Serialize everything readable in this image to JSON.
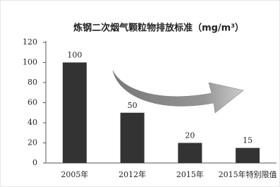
{
  "chart_data": {
    "type": "bar",
    "title": "炼钢二次烟气颗粒物排放标准（mg/m³）",
    "categories": [
      "2005年",
      "2012年",
      "2015年",
      "2015年特别限值"
    ],
    "values": [
      100,
      50,
      20,
      15
    ],
    "color": "#333333",
    "ylim": [
      0,
      120
    ],
    "yticks": [
      0,
      20,
      40,
      60,
      80,
      100,
      120
    ],
    "grid": false
  }
}
